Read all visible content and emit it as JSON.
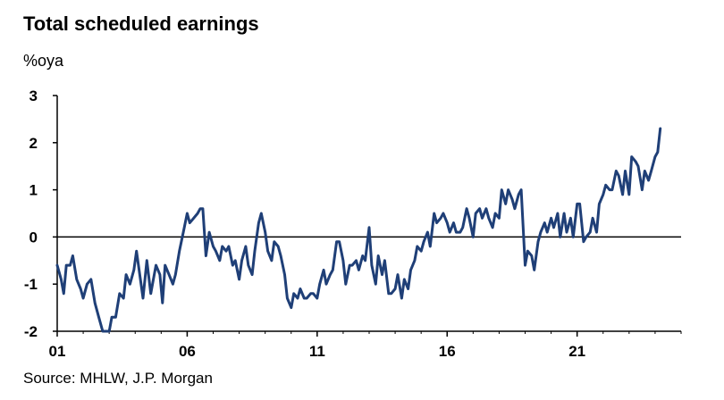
{
  "chart": {
    "title": "Total scheduled earnings",
    "unit_label": "%oya",
    "source": "Source: MHLW, J.P. Morgan"
  },
  "chart_data": {
    "type": "line",
    "title": "Total scheduled earnings",
    "ylabel": "%oya",
    "xlabel": "",
    "ylim": [
      -2,
      3
    ],
    "xlim": [
      2001.0,
      2025.0
    ],
    "y_ticks": [
      -2,
      -1,
      0,
      1,
      2,
      3
    ],
    "x_ticks": [
      {
        "value": 2001,
        "label": "01"
      },
      {
        "value": 2006,
        "label": "06"
      },
      {
        "value": 2011,
        "label": "11"
      },
      {
        "value": 2016,
        "label": "16"
      },
      {
        "value": 2021,
        "label": "21"
      }
    ],
    "grid": false,
    "legend": "none",
    "line_color": "#1f3f77",
    "series": [
      {
        "values": [
          [
            2001.0,
            -0.6
          ],
          [
            2001.15,
            -0.9
          ],
          [
            2001.25,
            -1.2
          ],
          [
            2001.35,
            -0.6
          ],
          [
            2001.5,
            -0.6
          ],
          [
            2001.6,
            -0.4
          ],
          [
            2001.75,
            -0.9
          ],
          [
            2001.9,
            -1.1
          ],
          [
            2002.0,
            -1.3
          ],
          [
            2002.15,
            -1.0
          ],
          [
            2002.3,
            -0.9
          ],
          [
            2002.45,
            -1.4
          ],
          [
            2002.6,
            -1.7
          ],
          [
            2002.75,
            -2.0
          ],
          [
            2002.9,
            -2.0
          ],
          [
            2003.0,
            -2.0
          ],
          [
            2003.1,
            -1.7
          ],
          [
            2003.25,
            -1.7
          ],
          [
            2003.4,
            -1.2
          ],
          [
            2003.55,
            -1.3
          ],
          [
            2003.65,
            -0.8
          ],
          [
            2003.8,
            -1.0
          ],
          [
            2003.95,
            -0.7
          ],
          [
            2004.05,
            -0.3
          ],
          [
            2004.2,
            -0.9
          ],
          [
            2004.3,
            -1.3
          ],
          [
            2004.45,
            -0.5
          ],
          [
            2004.6,
            -1.2
          ],
          [
            2004.7,
            -0.9
          ],
          [
            2004.8,
            -0.6
          ],
          [
            2004.95,
            -0.8
          ],
          [
            2005.05,
            -1.4
          ],
          [
            2005.15,
            -0.6
          ],
          [
            2005.3,
            -0.8
          ],
          [
            2005.45,
            -1.0
          ],
          [
            2005.55,
            -0.8
          ],
          [
            2005.7,
            -0.3
          ],
          [
            2005.85,
            0.1
          ],
          [
            2006.0,
            0.5
          ],
          [
            2006.1,
            0.3
          ],
          [
            2006.25,
            0.4
          ],
          [
            2006.4,
            0.5
          ],
          [
            2006.5,
            0.6
          ],
          [
            2006.6,
            0.6
          ],
          [
            2006.72,
            -0.4
          ],
          [
            2006.85,
            0.1
          ],
          [
            2007.0,
            -0.2
          ],
          [
            2007.1,
            -0.3
          ],
          [
            2007.25,
            -0.5
          ],
          [
            2007.35,
            -0.2
          ],
          [
            2007.5,
            -0.3
          ],
          [
            2007.6,
            -0.2
          ],
          [
            2007.75,
            -0.6
          ],
          [
            2007.85,
            -0.5
          ],
          [
            2008.0,
            -0.9
          ],
          [
            2008.1,
            -0.5
          ],
          [
            2008.25,
            -0.2
          ],
          [
            2008.35,
            -0.6
          ],
          [
            2008.5,
            -0.8
          ],
          [
            2008.6,
            -0.3
          ],
          [
            2008.75,
            0.3
          ],
          [
            2008.85,
            0.5
          ],
          [
            2009.0,
            0.1
          ],
          [
            2009.1,
            -0.3
          ],
          [
            2009.25,
            -0.5
          ],
          [
            2009.35,
            -0.1
          ],
          [
            2009.5,
            -0.2
          ],
          [
            2009.6,
            -0.4
          ],
          [
            2009.75,
            -0.8
          ],
          [
            2009.85,
            -1.3
          ],
          [
            2010.0,
            -1.5
          ],
          [
            2010.1,
            -1.2
          ],
          [
            2010.25,
            -1.3
          ],
          [
            2010.35,
            -1.1
          ],
          [
            2010.5,
            -1.3
          ],
          [
            2010.6,
            -1.3
          ],
          [
            2010.75,
            -1.2
          ],
          [
            2010.85,
            -1.2
          ],
          [
            2011.0,
            -1.3
          ],
          [
            2011.1,
            -1.0
          ],
          [
            2011.25,
            -0.7
          ],
          [
            2011.35,
            -1.0
          ],
          [
            2011.5,
            -0.8
          ],
          [
            2011.6,
            -0.7
          ],
          [
            2011.75,
            -0.1
          ],
          [
            2011.85,
            -0.1
          ],
          [
            2012.0,
            -0.5
          ],
          [
            2012.1,
            -1.0
          ],
          [
            2012.25,
            -0.6
          ],
          [
            2012.35,
            -0.6
          ],
          [
            2012.5,
            -0.5
          ],
          [
            2012.6,
            -0.7
          ],
          [
            2012.75,
            -0.4
          ],
          [
            2012.85,
            -0.5
          ],
          [
            2013.0,
            0.2
          ],
          [
            2013.1,
            -0.6
          ],
          [
            2013.25,
            -1.0
          ],
          [
            2013.35,
            -0.4
          ],
          [
            2013.5,
            -0.8
          ],
          [
            2013.6,
            -0.5
          ],
          [
            2013.75,
            -1.2
          ],
          [
            2013.85,
            -1.2
          ],
          [
            2014.0,
            -1.1
          ],
          [
            2014.1,
            -0.8
          ],
          [
            2014.25,
            -1.3
          ],
          [
            2014.35,
            -0.9
          ],
          [
            2014.5,
            -1.1
          ],
          [
            2014.6,
            -0.7
          ],
          [
            2014.75,
            -0.5
          ],
          [
            2014.85,
            -0.2
          ],
          [
            2015.0,
            -0.3
          ],
          [
            2015.1,
            -0.1
          ],
          [
            2015.25,
            0.1
          ],
          [
            2015.35,
            -0.2
          ],
          [
            2015.5,
            0.5
          ],
          [
            2015.6,
            0.3
          ],
          [
            2015.75,
            0.4
          ],
          [
            2015.85,
            0.5
          ],
          [
            2016.0,
            0.3
          ],
          [
            2016.1,
            0.1
          ],
          [
            2016.25,
            0.3
          ],
          [
            2016.35,
            0.1
          ],
          [
            2016.5,
            0.1
          ],
          [
            2016.6,
            0.2
          ],
          [
            2016.75,
            0.6
          ],
          [
            2016.85,
            0.4
          ],
          [
            2017.0,
            0.0
          ],
          [
            2017.1,
            0.5
          ],
          [
            2017.25,
            0.6
          ],
          [
            2017.35,
            0.4
          ],
          [
            2017.5,
            0.6
          ],
          [
            2017.6,
            0.4
          ],
          [
            2017.75,
            0.2
          ],
          [
            2017.85,
            0.5
          ],
          [
            2018.0,
            0.4
          ],
          [
            2018.1,
            1.0
          ],
          [
            2018.25,
            0.7
          ],
          [
            2018.35,
            1.0
          ],
          [
            2018.5,
            0.8
          ],
          [
            2018.6,
            0.6
          ],
          [
            2018.75,
            0.9
          ],
          [
            2018.85,
            1.0
          ],
          [
            2019.0,
            -0.6
          ],
          [
            2019.1,
            -0.3
          ],
          [
            2019.25,
            -0.4
          ],
          [
            2019.35,
            -0.7
          ],
          [
            2019.5,
            -0.1
          ],
          [
            2019.6,
            0.1
          ],
          [
            2019.75,
            0.3
          ],
          [
            2019.85,
            0.1
          ],
          [
            2020.0,
            0.4
          ],
          [
            2020.1,
            0.2
          ],
          [
            2020.25,
            0.5
          ],
          [
            2020.35,
            0.0
          ],
          [
            2020.5,
            0.5
          ],
          [
            2020.6,
            0.1
          ],
          [
            2020.75,
            0.4
          ],
          [
            2020.85,
            0.0
          ],
          [
            2021.0,
            0.7
          ],
          [
            2021.1,
            0.7
          ],
          [
            2021.25,
            -0.1
          ],
          [
            2021.35,
            0.0
          ],
          [
            2021.5,
            0.1
          ],
          [
            2021.6,
            0.4
          ],
          [
            2021.75,
            0.1
          ],
          [
            2021.85,
            0.7
          ],
          [
            2022.0,
            0.9
          ],
          [
            2022.1,
            1.1
          ],
          [
            2022.25,
            1.0
          ],
          [
            2022.35,
            1.0
          ],
          [
            2022.5,
            1.4
          ],
          [
            2022.6,
            1.3
          ],
          [
            2022.75,
            0.9
          ],
          [
            2022.85,
            1.4
          ],
          [
            2023.0,
            0.9
          ],
          [
            2023.1,
            1.7
          ],
          [
            2023.25,
            1.6
          ],
          [
            2023.35,
            1.5
          ],
          [
            2023.5,
            1.0
          ],
          [
            2023.6,
            1.4
          ],
          [
            2023.75,
            1.2
          ],
          [
            2023.85,
            1.4
          ],
          [
            2024.0,
            1.7
          ],
          [
            2024.1,
            1.8
          ],
          [
            2024.2,
            2.3
          ]
        ]
      }
    ]
  }
}
